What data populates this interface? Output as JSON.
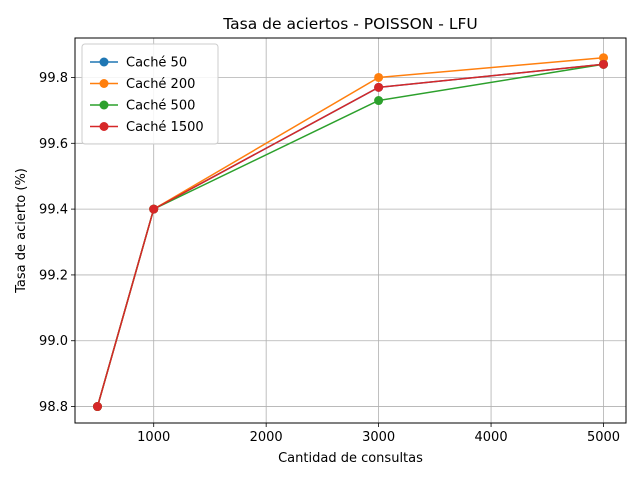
{
  "chart_data": {
    "type": "line",
    "title": "Tasa de aciertos - POISSON - LFU",
    "xlabel": "Cantidad de consultas",
    "ylabel": "Tasa de acierto (%)",
    "x": [
      500,
      1000,
      3000,
      5000
    ],
    "xlim": [
      300,
      5200
    ],
    "ylim": [
      98.75,
      99.92
    ],
    "xticks": [
      1000,
      2000,
      3000,
      4000,
      5000
    ],
    "xtick_labels": [
      "1000",
      "2000",
      "3000",
      "4000",
      "5000"
    ],
    "yticks": [
      98.8,
      99.0,
      99.2,
      99.4,
      99.6,
      99.8
    ],
    "ytick_labels": [
      "98.8",
      "99.0",
      "99.2",
      "99.4",
      "99.6",
      "99.8"
    ],
    "grid": true,
    "legend_position": "top-left",
    "series": [
      {
        "name": "Caché 50",
        "color": "#1f77b4",
        "values": [
          98.8,
          99.4,
          99.77,
          99.84
        ]
      },
      {
        "name": "Caché 200",
        "color": "#ff7f0e",
        "values": [
          98.8,
          99.4,
          99.8,
          99.86
        ]
      },
      {
        "name": "Caché 500",
        "color": "#2ca02c",
        "values": [
          98.8,
          99.4,
          99.73,
          99.84
        ]
      },
      {
        "name": "Caché 1500",
        "color": "#d62728",
        "values": [
          98.8,
          99.4,
          99.77,
          99.84
        ]
      }
    ]
  }
}
